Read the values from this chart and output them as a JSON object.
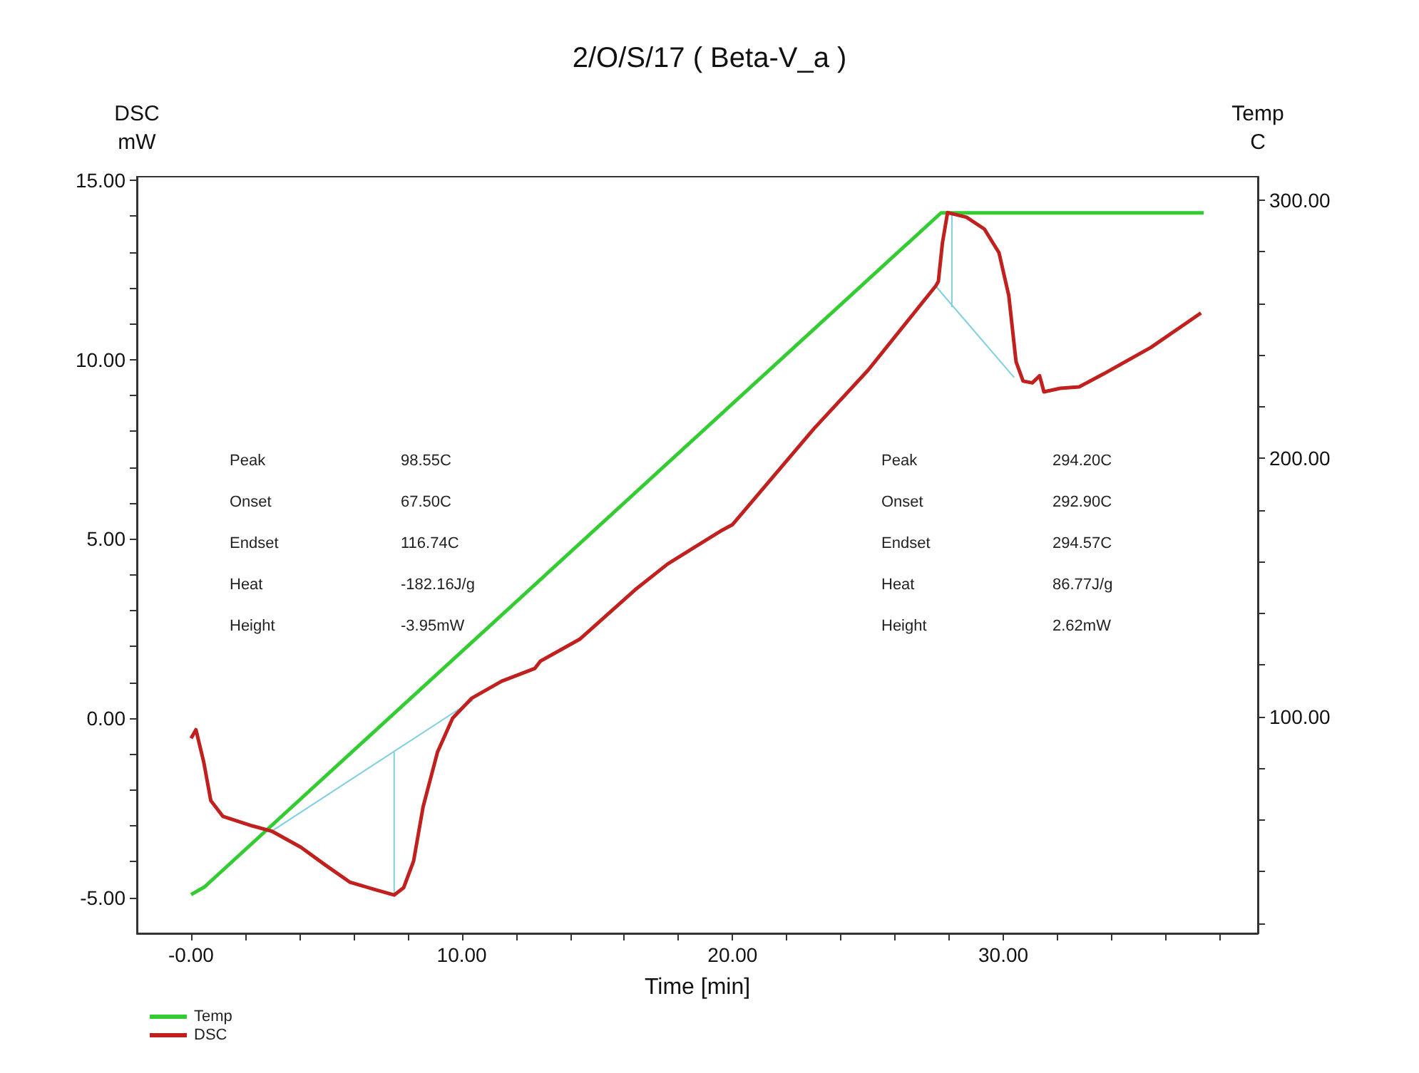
{
  "chart_data": {
    "type": "line",
    "title": "2/O/S/17 ( Beta-V_a )",
    "xlabel": "Time [min]",
    "ylabel": "DSC\nmW",
    "y2label": "Temp\nC",
    "xlim": [
      -2.0,
      39.4
    ],
    "xticks": [
      {
        "value": 0,
        "label": "-0.00"
      },
      {
        "value": 2,
        "label": null
      },
      {
        "value": 4,
        "label": null
      },
      {
        "value": 6,
        "label": null
      },
      {
        "value": 8,
        "label": null
      },
      {
        "value": 10,
        "label": "10.00"
      },
      {
        "value": 12,
        "label": null
      },
      {
        "value": 14,
        "label": null
      },
      {
        "value": 16,
        "label": null
      },
      {
        "value": 18,
        "label": null
      },
      {
        "value": 20,
        "label": "20.00"
      },
      {
        "value": 22,
        "label": null
      },
      {
        "value": 24,
        "label": null
      },
      {
        "value": 26,
        "label": null
      },
      {
        "value": 28,
        "label": null
      },
      {
        "value": 30,
        "label": "30.00"
      },
      {
        "value": 32,
        "label": null
      },
      {
        "value": 34,
        "label": null
      },
      {
        "value": 36,
        "label": null
      },
      {
        "value": 38,
        "label": null
      }
    ],
    "ylim": [
      -6.0,
      15.1
    ],
    "yticks": [
      {
        "value": -5,
        "label": "-5.00"
      },
      {
        "value": -4,
        "label": null
      },
      {
        "value": -3,
        "label": null
      },
      {
        "value": -2,
        "label": null
      },
      {
        "value": -1,
        "label": null
      },
      {
        "value": 0,
        "label": "0.00"
      },
      {
        "value": 1,
        "label": null
      },
      {
        "value": 2,
        "label": null
      },
      {
        "value": 3,
        "label": null
      },
      {
        "value": 4,
        "label": null
      },
      {
        "value": 5,
        "label": "5.00"
      },
      {
        "value": 6,
        "label": null
      },
      {
        "value": 7,
        "label": null
      },
      {
        "value": 8,
        "label": null
      },
      {
        "value": 9,
        "label": null
      },
      {
        "value": 10,
        "label": "10.00"
      },
      {
        "value": 11,
        "label": null
      },
      {
        "value": 12,
        "label": null
      },
      {
        "value": 13,
        "label": null
      },
      {
        "value": 14,
        "label": null
      },
      {
        "value": 15,
        "label": "15.00"
      }
    ],
    "y2lim": [
      16,
      309
    ],
    "y2ticks": [
      {
        "value": 20,
        "label": null
      },
      {
        "value": 40,
        "label": null
      },
      {
        "value": 60,
        "label": null
      },
      {
        "value": 80,
        "label": null
      },
      {
        "value": 100,
        "label": "100.00"
      },
      {
        "value": 120,
        "label": null
      },
      {
        "value": 140,
        "label": null
      },
      {
        "value": 160,
        "label": null
      },
      {
        "value": 180,
        "label": null
      },
      {
        "value": 200,
        "label": "200.00"
      },
      {
        "value": 220,
        "label": null
      },
      {
        "value": 240,
        "label": null
      },
      {
        "value": 260,
        "label": null
      },
      {
        "value": 280,
        "label": null
      },
      {
        "value": 300,
        "label": "300.00"
      }
    ],
    "grid": false,
    "legend": "bottom left",
    "marker": "none",
    "line_style": "solid",
    "series": [
      {
        "name": "Temp",
        "color": "#33cc33",
        "axis": "y2",
        "x": [
          0,
          0.5,
          27.7,
          37.4
        ],
        "values": [
          31,
          34,
          295,
          295
        ]
      },
      {
        "name": "DSC",
        "color": "#c0201e",
        "axis": "y",
        "x": [
          0,
          0.18,
          0.47,
          0.73,
          1.18,
          2.25,
          2.98,
          4.06,
          4.97,
          5.86,
          6.75,
          7.5,
          7.85,
          8.22,
          8.57,
          9.1,
          9.66,
          10.37,
          11.47,
          12.7,
          12.9,
          14.35,
          16.4,
          17.6,
          19.56,
          20.0,
          23.0,
          25.0,
          27.5,
          27.6,
          27.75,
          27.94,
          28.64,
          29.3,
          29.84,
          30.2,
          30.47,
          30.73,
          31.07,
          31.34,
          31.5,
          32.1,
          32.8,
          33.7,
          35.45,
          37.3
        ],
        "values": [
          -0.56,
          -0.32,
          -1.23,
          -2.3,
          -2.74,
          -3.0,
          -3.15,
          -3.6,
          -4.1,
          -4.57,
          -4.77,
          -4.93,
          -4.73,
          -3.98,
          -2.47,
          -0.95,
          0,
          0.56,
          1.03,
          1.39,
          1.59,
          2.2,
          3.58,
          4.3,
          5.22,
          5.4,
          8.07,
          9.7,
          12.05,
          12.18,
          13.25,
          14.1,
          13.97,
          13.64,
          12.98,
          11.79,
          9.94,
          9.4,
          9.35,
          9.55,
          9.1,
          9.2,
          9.24,
          9.6,
          10.34,
          11.3
        ]
      },
      {
        "color": "#80d0e0",
        "axis": "y",
        "x": [
          2.98,
          10.4
        ],
        "values": [
          -3.15,
          0.5
        ]
      },
      {
        "color": "#80d0e0",
        "axis": "y",
        "x": [
          7.5,
          7.5
        ],
        "values": [
          -4.93,
          -0.95
        ]
      },
      {
        "color": "#80d0e0",
        "axis": "y",
        "x": [
          27.5,
          30.4
        ],
        "values": [
          12.05,
          9.5
        ]
      },
      {
        "color": "#80d0e0",
        "axis": "y",
        "x": [
          28.1,
          28.1
        ],
        "values": [
          14.1,
          11.46
        ]
      }
    ],
    "annotations": [
      "Peak",
      "98.55C",
      "Onset",
      "67.50C",
      "Endset",
      "116.74C",
      "Heat",
      "-182.16J/g",
      "Height",
      "-3.95mW",
      "Peak",
      "294.20C",
      "Onset",
      "292.90C",
      "Endset",
      "294.57C",
      "Heat",
      "86.77J/g",
      "Height",
      "2.62mW"
    ]
  }
}
